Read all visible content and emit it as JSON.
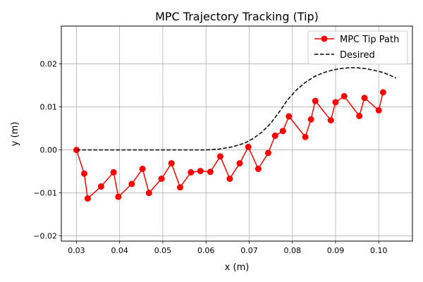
{
  "chart_data": {
    "type": "line",
    "title": "MPC Trajectory Tracking (Tip)",
    "xlabel": "x (m)",
    "ylabel": "y (m)",
    "xlim": [
      0.0265,
      0.1078
    ],
    "ylim": [
      -0.0212,
      0.0288
    ],
    "xticks": [
      0.03,
      0.04,
      0.05,
      0.06,
      0.07,
      0.08,
      0.09,
      0.1
    ],
    "xtick_labels": [
      "0.03",
      "0.04",
      "0.05",
      "0.06",
      "0.07",
      "0.08",
      "0.09",
      "0.10"
    ],
    "yticks": [
      -0.02,
      -0.01,
      0.0,
      0.01,
      0.02
    ],
    "ytick_labels": [
      "−0.02",
      "−0.01",
      "0.00",
      "0.01",
      "0.02"
    ],
    "grid": true,
    "legend_position": "top-right",
    "series": [
      {
        "name": "MPC Tip Path",
        "color": "#ff0000",
        "line_style": "solid",
        "marker": "circle",
        "x": [
          0.03,
          0.0318,
          0.0326,
          0.0357,
          0.0386,
          0.0397,
          0.0428,
          0.0453,
          0.0468,
          0.0497,
          0.052,
          0.054,
          0.0565,
          0.0587,
          0.061,
          0.0633,
          0.0655,
          0.0678,
          0.0698,
          0.0721,
          0.0744,
          0.076,
          0.0778,
          0.0792,
          0.083,
          0.0843,
          0.0853,
          0.0889,
          0.09,
          0.092,
          0.0955,
          0.0967,
          0.1,
          0.101
        ],
        "y": [
          0.0,
          -0.0055,
          -0.0113,
          -0.0085,
          -0.0052,
          -0.0109,
          -0.0079,
          -0.0044,
          -0.01,
          -0.0067,
          -0.0031,
          -0.0087,
          -0.0052,
          -0.0049,
          -0.0051,
          -0.0015,
          -0.0067,
          -0.0031,
          0.0007,
          -0.0044,
          -0.0007,
          0.0033,
          0.0044,
          0.0078,
          0.003,
          0.0071,
          0.0114,
          0.0069,
          0.0111,
          0.0125,
          0.0079,
          0.0121,
          0.0092,
          0.0134
        ]
      },
      {
        "name": "Desired",
        "color": "#000000",
        "line_style": "dashed",
        "marker": "none",
        "x": [
          0.03,
          0.04,
          0.05,
          0.06,
          0.063,
          0.066,
          0.069,
          0.071,
          0.073,
          0.075,
          0.077,
          0.079,
          0.081,
          0.083,
          0.085,
          0.087,
          0.089,
          0.091,
          0.093,
          0.095,
          0.097,
          0.099,
          0.101,
          0.103,
          0.104
        ],
        "y": [
          0.0,
          0.0,
          0.0,
          0.0,
          0.0002,
          0.0007,
          0.0016,
          0.0027,
          0.0042,
          0.0062,
          0.0089,
          0.0118,
          0.014,
          0.0157,
          0.017,
          0.0179,
          0.0185,
          0.0189,
          0.0191,
          0.0191,
          0.0189,
          0.0185,
          0.018,
          0.0172,
          0.0167
        ]
      }
    ]
  }
}
